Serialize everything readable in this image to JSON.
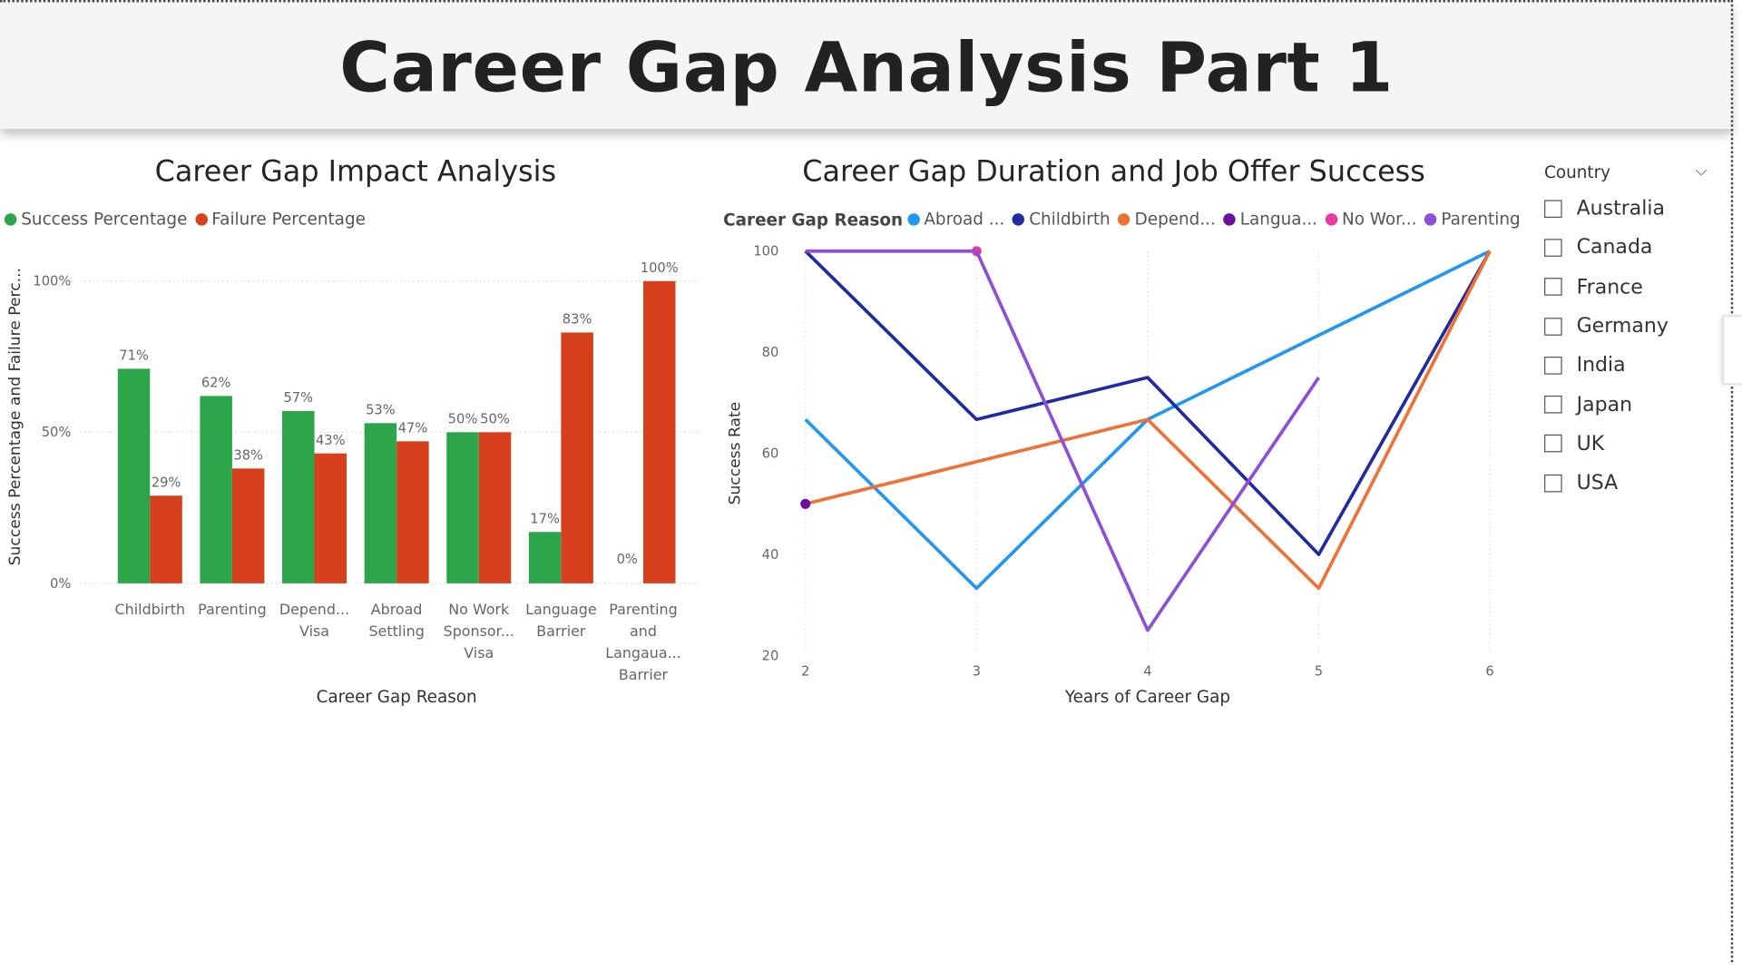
{
  "page": {
    "title": "Career Gap Analysis Part 1"
  },
  "slicer": {
    "title": "Country",
    "items": [
      "Australia",
      "Canada",
      "France",
      "Germany",
      "India",
      "Japan",
      "UK",
      "USA"
    ]
  },
  "bar_legend": [
    {
      "label": "Success Percentage",
      "color": "#2ca54b"
    },
    {
      "label": "Failure Percentage",
      "color": "#d6401d"
    }
  ],
  "line_legend": {
    "title": "Career Gap Reason",
    "items": [
      {
        "label": "Abroad ...",
        "color": "#2196f3"
      },
      {
        "label": "Childbirth",
        "color": "#1f2aa3"
      },
      {
        "label": "Depend...",
        "color": "#ef7136"
      },
      {
        "label": "Langua...",
        "color": "#6a0fa0"
      },
      {
        "label": "No Wor...",
        "color": "#e83aa3"
      },
      {
        "label": "Parenting",
        "color": "#8e4fd6"
      }
    ]
  },
  "chart_data": [
    {
      "type": "bar",
      "title": "Career Gap Impact Analysis",
      "xlabel": "Career Gap Reason",
      "ylabel": "Success Percentage and Failure Perc...",
      "ylim": [
        0,
        100
      ],
      "yticks": [
        "0%",
        "50%",
        "100%"
      ],
      "categories": [
        [
          "Childbirth"
        ],
        [
          "Parenting"
        ],
        [
          "Depend...",
          "Visa"
        ],
        [
          "Abroad",
          "Settling"
        ],
        [
          "No Work",
          "Sponsor...",
          "Visa"
        ],
        [
          "Language",
          "Barrier"
        ],
        [
          "Parenting",
          "and",
          "Langaua...",
          "Barrier"
        ]
      ],
      "series": [
        {
          "name": "Success Percentage",
          "color": "#2ca54b",
          "values": [
            71,
            62,
            57,
            53,
            50,
            17,
            0
          ]
        },
        {
          "name": "Failure Percentage",
          "color": "#d6401d",
          "values": [
            29,
            38,
            43,
            47,
            50,
            83,
            100
          ]
        }
      ],
      "data_labels": [
        [
          "71%",
          "62%",
          "57%",
          "53%",
          "50%",
          "17%",
          "0%"
        ],
        [
          "29%",
          "38%",
          "43%",
          "47%",
          "50%",
          "83%",
          "100%"
        ]
      ],
      "grid": true,
      "legend": "top-left"
    },
    {
      "type": "line",
      "title": "Career Gap Duration and Job Offer Success",
      "xlabel": "Years of Career Gap",
      "ylabel": "Success Rate",
      "xlim": [
        2,
        6
      ],
      "ylim": [
        20,
        100
      ],
      "xticks": [
        2,
        3,
        4,
        5,
        6
      ],
      "yticks": [
        20,
        40,
        60,
        80,
        100
      ],
      "series": [
        {
          "name": "Abroad ...",
          "color": "#2196f3",
          "x": [
            2,
            3,
            4,
            6
          ],
          "y": [
            66.7,
            33.3,
            66.7,
            100
          ]
        },
        {
          "name": "Childbirth",
          "color": "#1f2aa3",
          "x": [
            2,
            3,
            4,
            5,
            6
          ],
          "y": [
            100,
            66.7,
            75,
            40,
            100
          ]
        },
        {
          "name": "Depend...",
          "color": "#ef7136",
          "x": [
            2,
            4,
            5,
            6
          ],
          "y": [
            50,
            66.7,
            33.3,
            100
          ]
        },
        {
          "name": "Langua...",
          "color": "#6a0fa0",
          "x": [
            2
          ],
          "y": [
            50
          ]
        },
        {
          "name": "No Wor...",
          "color": "#e83aa3",
          "x": [
            3
          ],
          "y": [
            100
          ]
        },
        {
          "name": "Parenting",
          "color": "#8e4fd6",
          "x": [
            2,
            3,
            4,
            5
          ],
          "y": [
            100,
            100,
            25,
            75
          ]
        }
      ],
      "grid": true,
      "legend": "top-left"
    }
  ]
}
